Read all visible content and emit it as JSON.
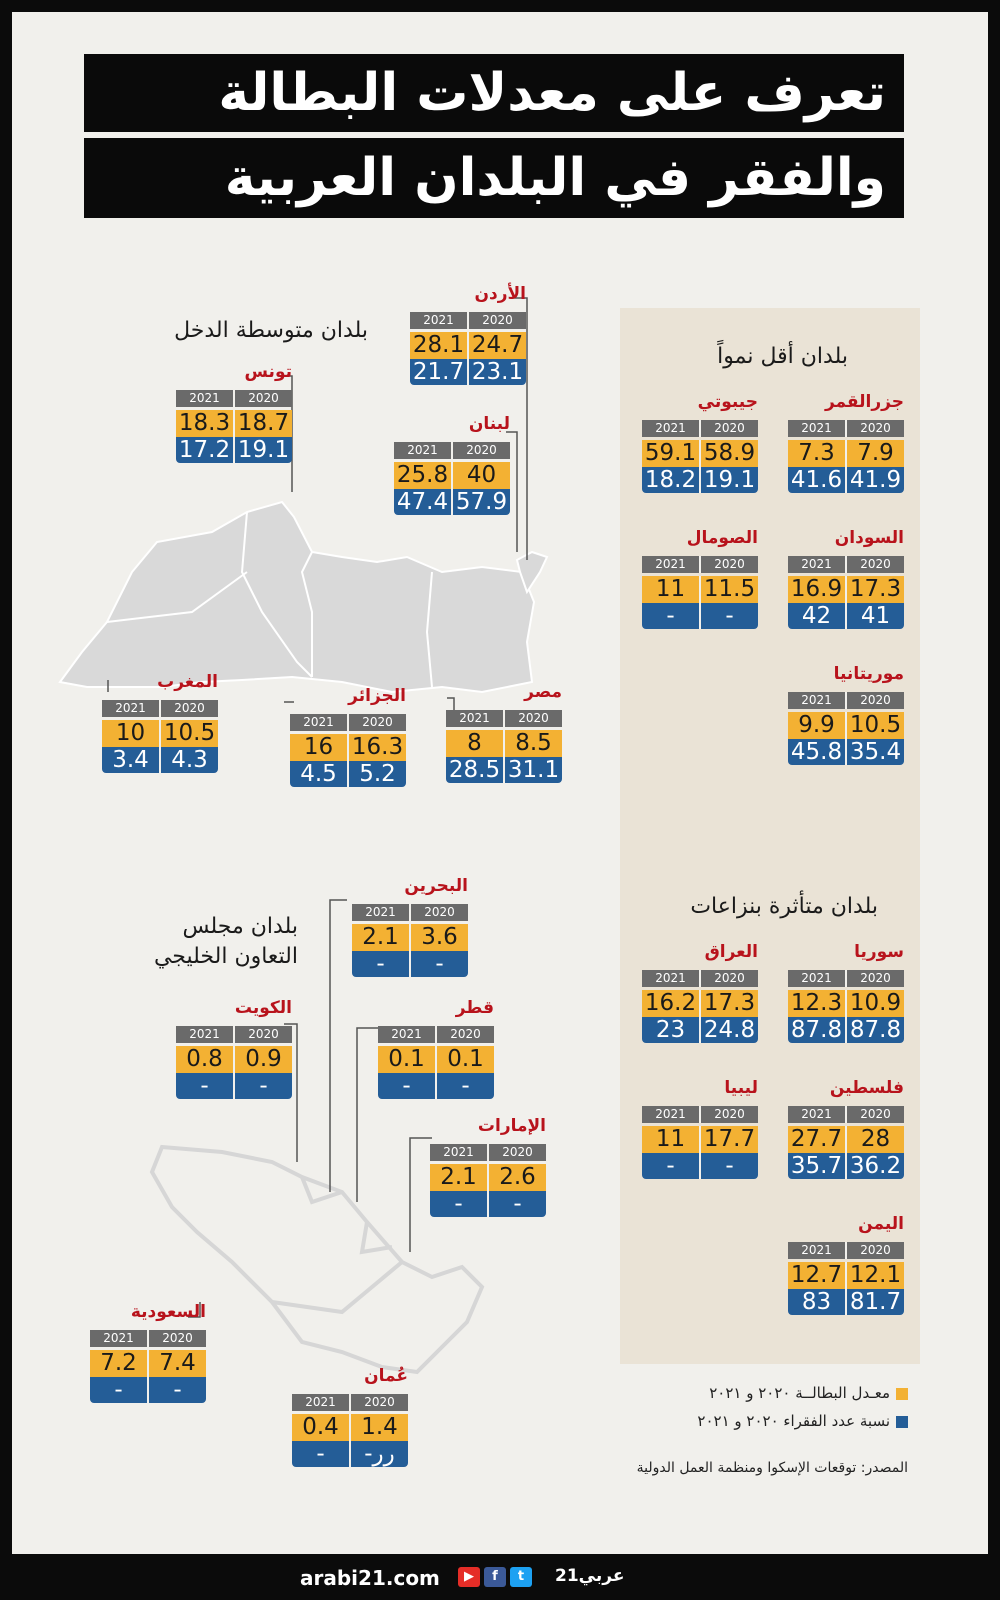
{
  "title": {
    "line1": "تعرف على معدلات البطالة",
    "line2": "والفقر في البلدان العربية"
  },
  "sections": {
    "least_developed": "بلدان أقل نمواً",
    "conflict": "بلدان متأثرة بنزاعات",
    "middle_income": "بلدان متوسطة الدخل",
    "gcc_line1": "بلدان مجلس",
    "gcc_line2": "التعاون الخليجي"
  },
  "years": {
    "y2020": "2020",
    "y2021": "2021"
  },
  "countries": {
    "comoros": {
      "name": "جزرالقمر",
      "u2020": "7.9",
      "u2021": "7.3",
      "p2020": "41.9",
      "p2021": "41.6"
    },
    "djibouti": {
      "name": "جيبوتي",
      "u2020": "58.9",
      "u2021": "59.1",
      "p2020": "19.1",
      "p2021": "18.2"
    },
    "sudan": {
      "name": "السودان",
      "u2020": "17.3",
      "u2021": "16.9",
      "p2020": "41",
      "p2021": "42"
    },
    "somalia": {
      "name": "الصومال",
      "u2020": "11.5",
      "u2021": "11",
      "p2020": "-",
      "p2021": "-"
    },
    "mauritania": {
      "name": "موريتانيا",
      "u2020": "10.5",
      "u2021": "9.9",
      "p2020": "35.4",
      "p2021": "45.8"
    },
    "syria": {
      "name": "سوريا",
      "u2020": "10.9",
      "u2021": "12.3",
      "p2020": "87.8",
      "p2021": "87.8"
    },
    "iraq": {
      "name": "العراق",
      "u2020": "17.3",
      "u2021": "16.2",
      "p2020": "24.8",
      "p2021": "23"
    },
    "palestine": {
      "name": "فلسطين",
      "u2020": "28",
      "u2021": "27.7",
      "p2020": "36.2",
      "p2021": "35.7"
    },
    "libya": {
      "name": "ليبيا",
      "u2020": "17.7",
      "u2021": "11",
      "p2020": "-",
      "p2021": "-"
    },
    "yemen": {
      "name": "اليمن",
      "u2020": "12.1",
      "u2021": "12.7",
      "p2020": "81.7",
      "p2021": "83"
    },
    "jordan": {
      "name": "الأردن",
      "u2020": "24.7",
      "u2021": "28.1",
      "p2020": "23.1",
      "p2021": "21.7"
    },
    "tunisia": {
      "name": "تونس",
      "u2020": "18.7",
      "u2021": "18.3",
      "p2020": "19.1",
      "p2021": "17.2"
    },
    "lebanon": {
      "name": "لبنان",
      "u2020": "40",
      "u2021": "25.8",
      "p2020": "57.9",
      "p2021": "47.4"
    },
    "morocco": {
      "name": "المغرب",
      "u2020": "10.5",
      "u2021": "10",
      "p2020": "4.3",
      "p2021": "3.4"
    },
    "algeria": {
      "name": "الجزائر",
      "u2020": "16.3",
      "u2021": "16",
      "p2020": "5.2",
      "p2021": "4.5"
    },
    "egypt": {
      "name": "مصر",
      "u2020": "8.5",
      "u2021": "8",
      "p2020": "31.1",
      "p2021": "28.5"
    },
    "bahrain": {
      "name": "البحرين",
      "u2020": "3.6",
      "u2021": "2.1",
      "p2020": "-",
      "p2021": "-"
    },
    "kuwait": {
      "name": "الكويت",
      "u2020": "0.9",
      "u2021": "0.8",
      "p2020": "-",
      "p2021": "-"
    },
    "qatar": {
      "name": "قطر",
      "u2020": "0.1",
      "u2021": "0.1",
      "p2020": "-",
      "p2021": "-"
    },
    "uae": {
      "name": "الإمارات",
      "u2020": "2.6",
      "u2021": "2.1",
      "p2020": "-",
      "p2021": "-"
    },
    "saudi": {
      "name": "السعودية",
      "u2020": "7.4",
      "u2021": "7.2",
      "p2020": "-",
      "p2021": "-"
    },
    "oman": {
      "name": "عُمان",
      "u2020": "1.4",
      "u2021": "0.4",
      "p2020": "-رر",
      "p2021": "-"
    }
  },
  "legend": {
    "unemployment": "معـدل البطالــة ٢٠٢٠ و ٢٠٢١",
    "poverty": "نسبة عدد الفقراء ٢٠٢٠ و ٢٠٢١",
    "unemployment_color": "#f3b133",
    "poverty_color": "#245d97"
  },
  "source": "المصدر: توقعات الإسكوا ومنظمة العمل الدولية",
  "footer": {
    "site": "arabi21.com",
    "brand": "عربي21",
    "icons": [
      "youtube-icon",
      "facebook-icon",
      "twitter-icon"
    ]
  }
}
